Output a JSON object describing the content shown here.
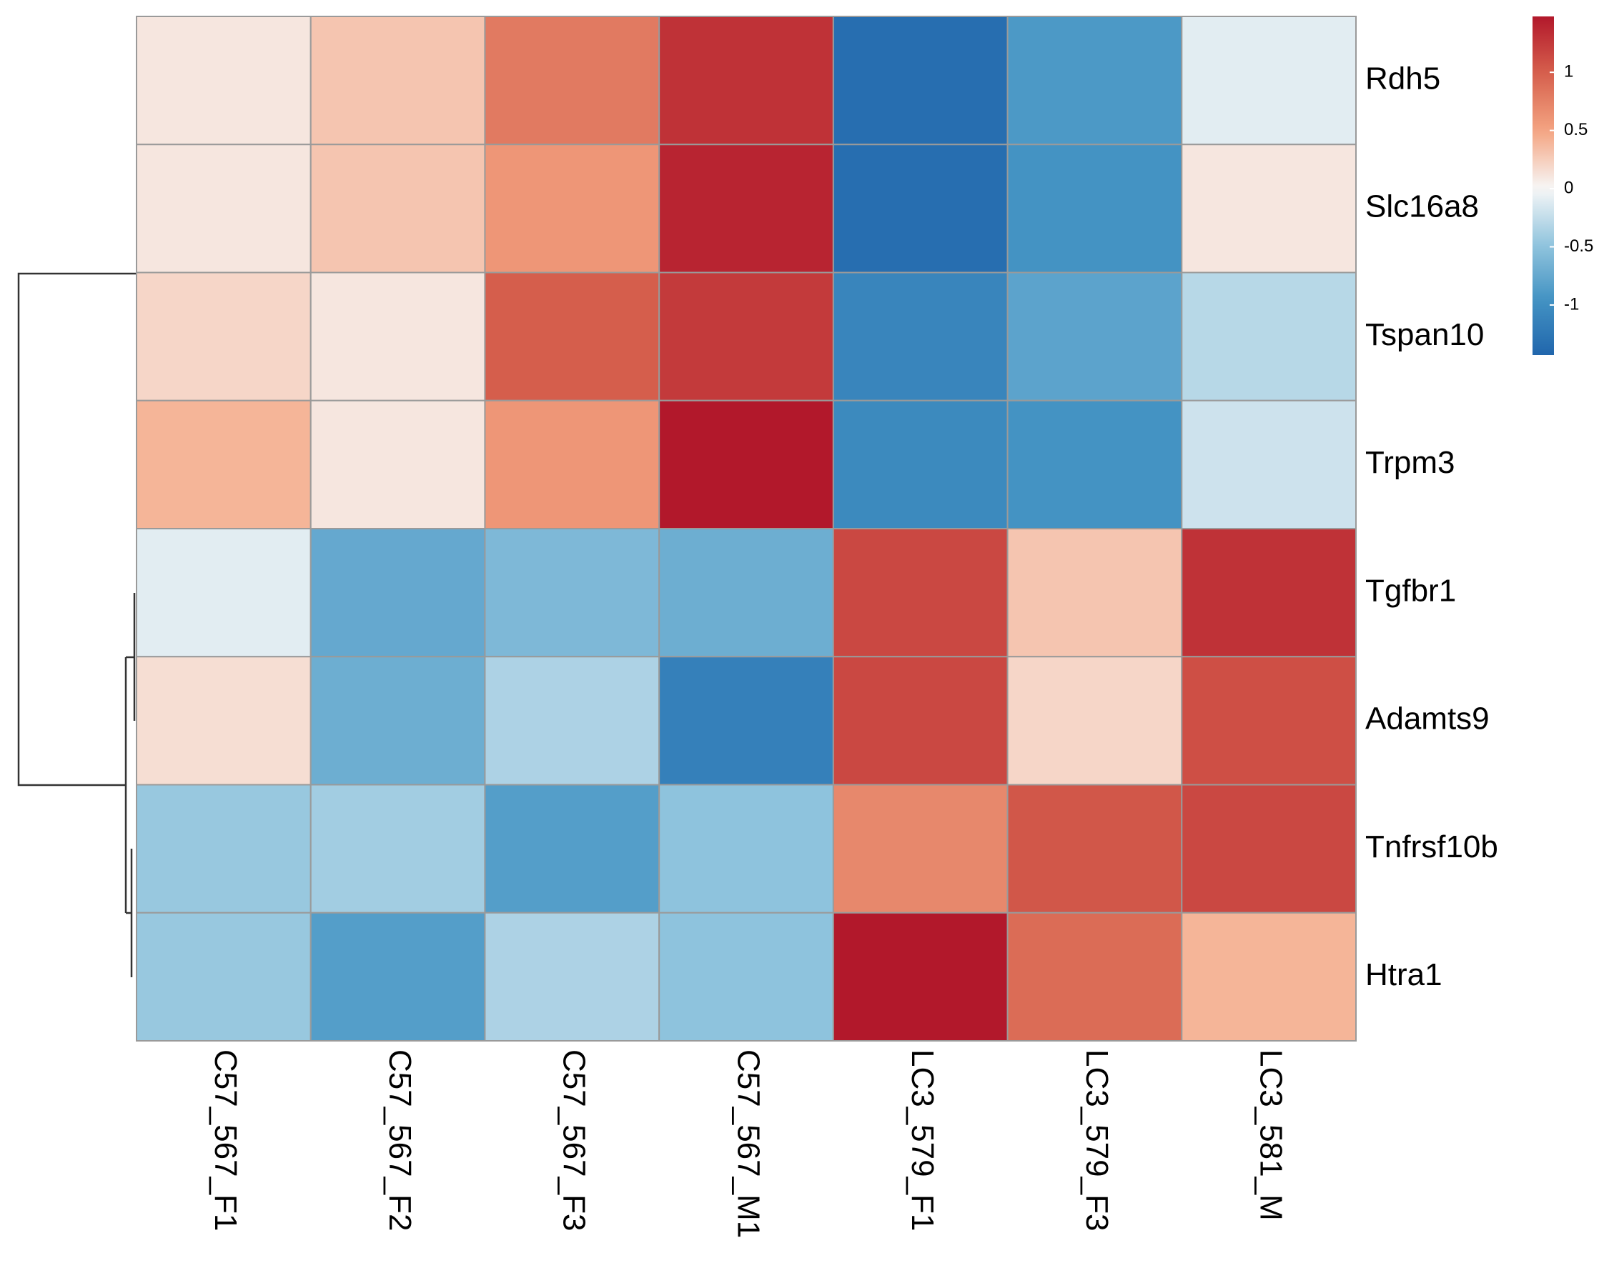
{
  "chart_data": {
    "type": "heatmap",
    "rows": [
      "Rdh5",
      "Slc16a8",
      "Tspan10",
      "Trpm3",
      "Tgfbr1",
      "Adamts9",
      "Tnfrsf10b",
      "Htra1"
    ],
    "columns": [
      "C57_567_F1",
      "C57_567_F2",
      "C57_567_F3",
      "C57_567_M1",
      "LC3_579_F1",
      "LC3_579_F3",
      "LC3_581_M"
    ],
    "values": [
      [
        0.1,
        0.3,
        0.8,
        1.3,
        -1.35,
        -0.9,
        -0.1
      ],
      [
        0.1,
        0.3,
        0.6,
        1.4,
        -1.35,
        -0.95,
        0.1
      ],
      [
        0.2,
        0.1,
        1.0,
        1.25,
        -1.1,
        -0.8,
        -0.3
      ],
      [
        0.4,
        0.1,
        0.6,
        1.48,
        -1.05,
        -0.95,
        -0.2
      ],
      [
        -0.1,
        -0.75,
        -0.6,
        -0.7,
        1.15,
        0.3,
        1.3
      ],
      [
        0.15,
        -0.7,
        -0.35,
        -1.15,
        1.15,
        0.2,
        1.1
      ],
      [
        -0.45,
        -0.4,
        -0.85,
        -0.5,
        0.7,
        1.05,
        1.15
      ],
      [
        -0.45,
        -0.85,
        -0.35,
        -0.5,
        1.48,
        0.9,
        0.4
      ]
    ],
    "colors": [
      "#2166ac",
      "#4393c3",
      "#92c5de",
      "#f7f7f7",
      "#f4a582",
      "#d6604d",
      "#b2182b"
    ],
    "colorbar_lim": [
      -1.43,
      1.48
    ],
    "colorbar_ticks": [
      -1,
      -0.5,
      0,
      0.5,
      1
    ]
  }
}
